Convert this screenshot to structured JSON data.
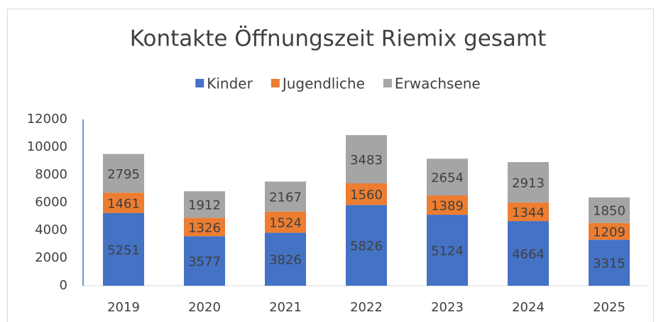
{
  "chart_data": {
    "type": "stacked_bar",
    "title": "Kontakte Öffnungszeit Riemix gesamt",
    "categories": [
      "2019",
      "2020",
      "2021",
      "2022",
      "2023",
      "2024",
      "2025"
    ],
    "series": [
      {
        "name": "Kinder",
        "color": "#4472c4",
        "values": [
          5251,
          3577,
          3826,
          5826,
          5124,
          4664,
          3315
        ]
      },
      {
        "name": "Jugendliche",
        "color": "#ed7d31",
        "values": [
          1461,
          1326,
          1524,
          1560,
          1389,
          1344,
          1209
        ]
      },
      {
        "name": "Erwachsene",
        "color": "#a5a5a5",
        "values": [
          2795,
          1912,
          2167,
          3483,
          2654,
          2913,
          1850
        ]
      }
    ],
    "ylim": [
      0,
      12000
    ],
    "yticks": [
      0,
      2000,
      4000,
      6000,
      8000,
      10000,
      12000
    ],
    "legend": "top"
  }
}
